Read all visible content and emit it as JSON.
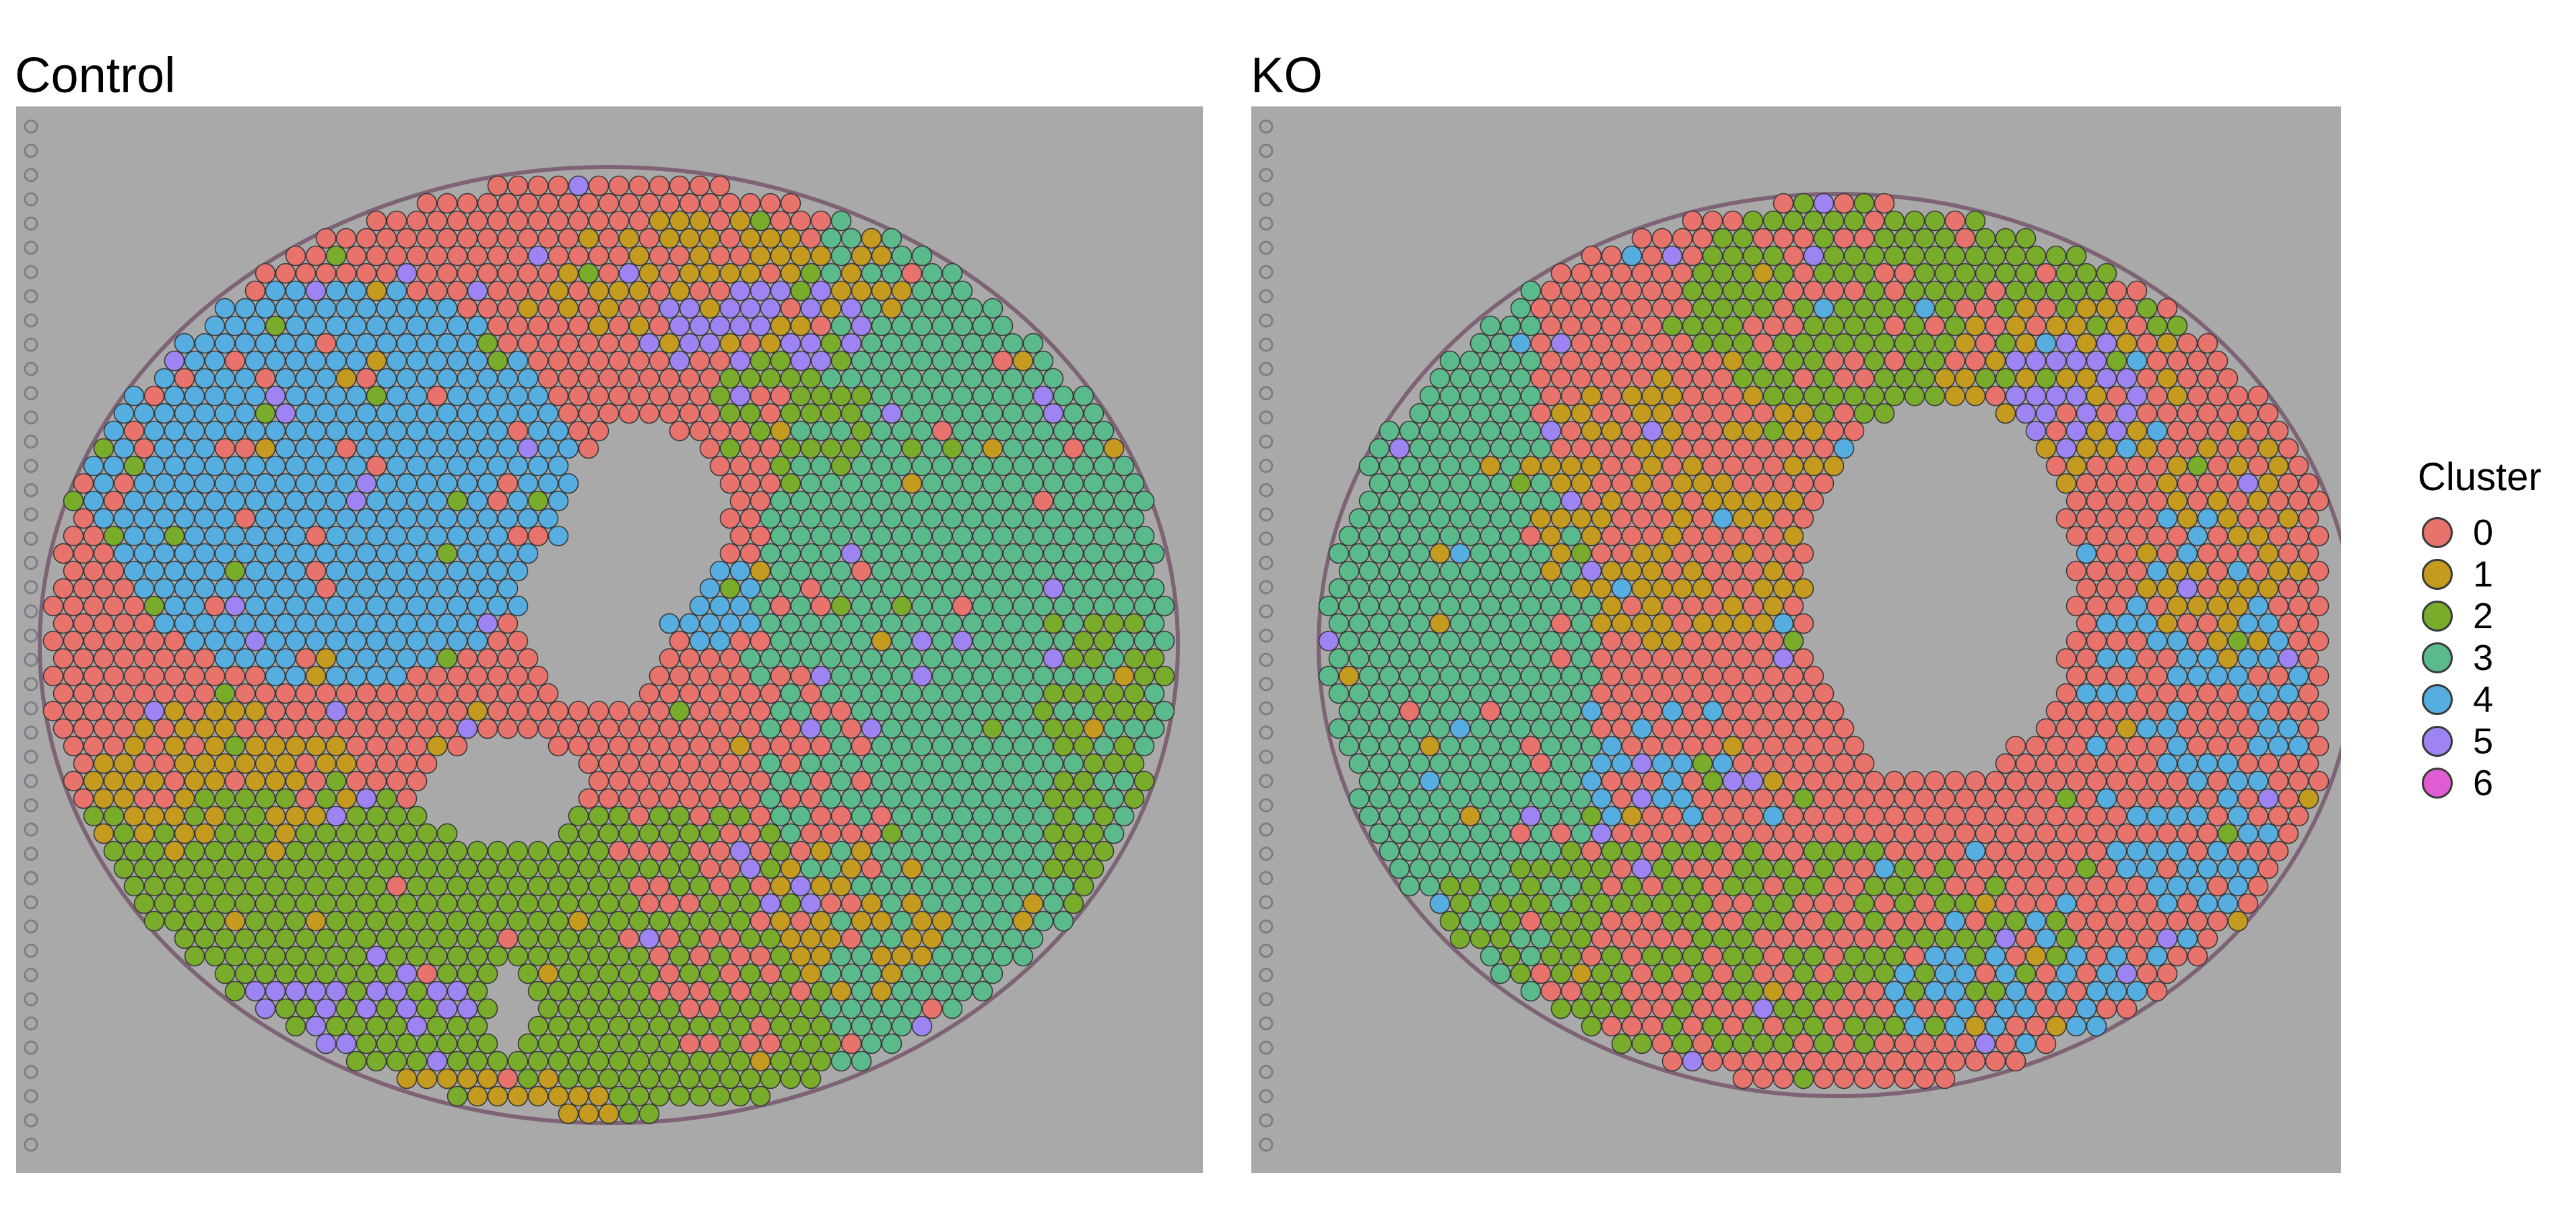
{
  "chart_data": {
    "type": "scatter",
    "kind": "spatial-transcriptomics-spot-map",
    "panels": [
      {
        "title": "Control"
      },
      {
        "title": "KO"
      }
    ],
    "legend": {
      "title": "Cluster",
      "placement": "right",
      "items": [
        {
          "label": "0",
          "color": "#E8736C"
        },
        {
          "label": "1",
          "color": "#C49A1F"
        },
        {
          "label": "2",
          "color": "#79AC2A"
        },
        {
          "label": "3",
          "color": "#5BBA8C"
        },
        {
          "label": "4",
          "color": "#55ADE0"
        },
        {
          "label": "5",
          "color": "#9E84F2"
        },
        {
          "label": "6",
          "color": "#E05CD2"
        }
      ]
    },
    "background_color": "#A9A9A9",
    "tissue_background": "histology image (grey)",
    "axes": "none",
    "grid": false
  }
}
